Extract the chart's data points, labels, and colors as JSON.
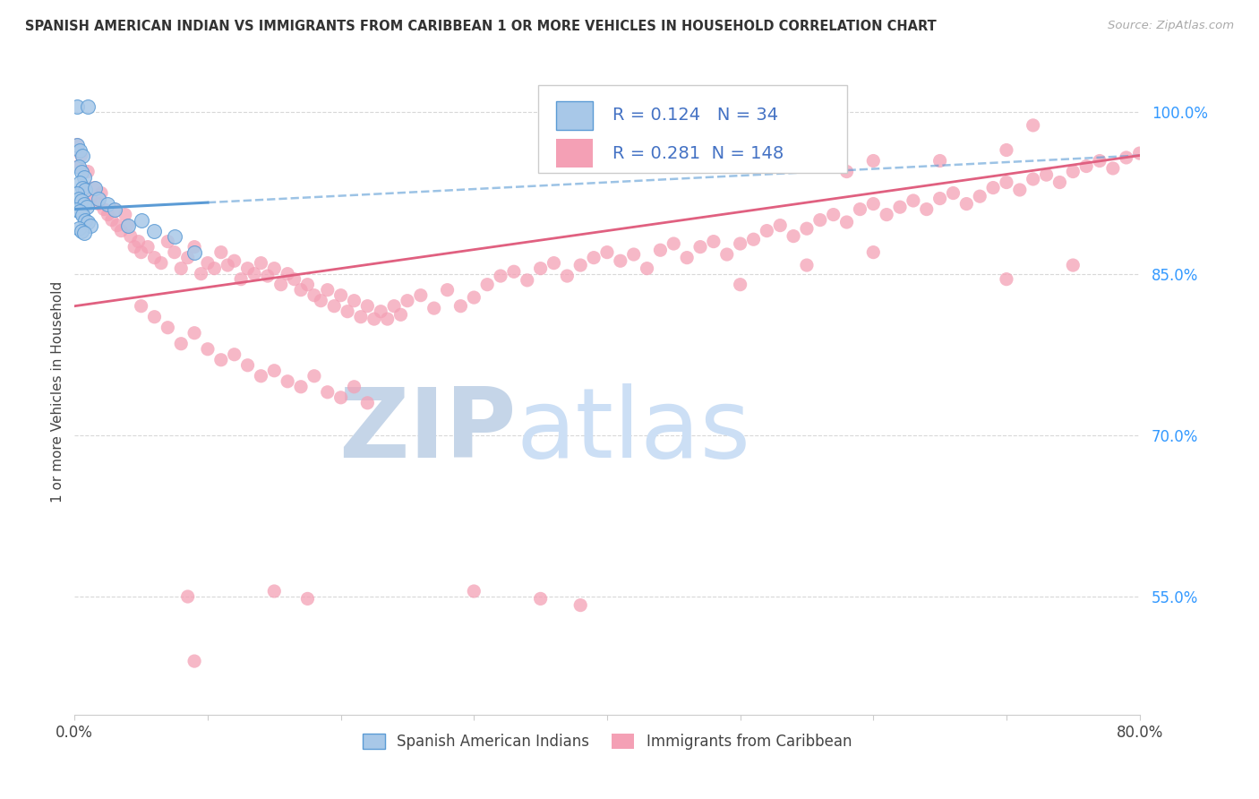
{
  "title": "SPANISH AMERICAN INDIAN VS IMMIGRANTS FROM CARIBBEAN 1 OR MORE VEHICLES IN HOUSEHOLD CORRELATION CHART",
  "source": "Source: ZipAtlas.com",
  "ylabel": "1 or more Vehicles in Household",
  "R1": "0.124",
  "N1": "34",
  "R2": "0.281",
  "N2": "148",
  "color_blue_fill": "#a8c8e8",
  "color_blue_edge": "#5b9bd5",
  "color_pink_fill": "#f4a0b5",
  "color_pink_edge": "none",
  "color_blue_line": "#5b9bd5",
  "color_pink_line": "#e06080",
  "color_blue_text": "#4472c4",
  "background_color": "#ffffff",
  "grid_color": "#d8d8d8",
  "watermark_zip_color": "#c0cce0",
  "watermark_atlas_color": "#c8daf0",
  "xmin": 0.0,
  "xmax": 0.8,
  "ymin": 0.44,
  "ymax": 1.04,
  "ytick_values": [
    0.55,
    0.7,
    0.85,
    1.0
  ],
  "ytick_labels": [
    "55.0%",
    "70.0%",
    "85.0%",
    "100.0%"
  ],
  "xtick_values": [
    0.0,
    0.1,
    0.2,
    0.3,
    0.4,
    0.5,
    0.6,
    0.7,
    0.8
  ],
  "xtick_labels": [
    "0.0%",
    "",
    "",
    "",
    "",
    "",
    "",
    "",
    "80.0%"
  ],
  "legend_label1": "Spanish American Indians",
  "legend_label2": "Immigrants from Caribbean",
  "blue_line_x0": 0.0,
  "blue_line_x1": 0.8,
  "blue_line_y0": 0.91,
  "blue_line_y1": 0.96,
  "pink_line_x0": 0.0,
  "pink_line_x1": 0.8,
  "pink_line_y0": 0.82,
  "pink_line_y1": 0.96
}
